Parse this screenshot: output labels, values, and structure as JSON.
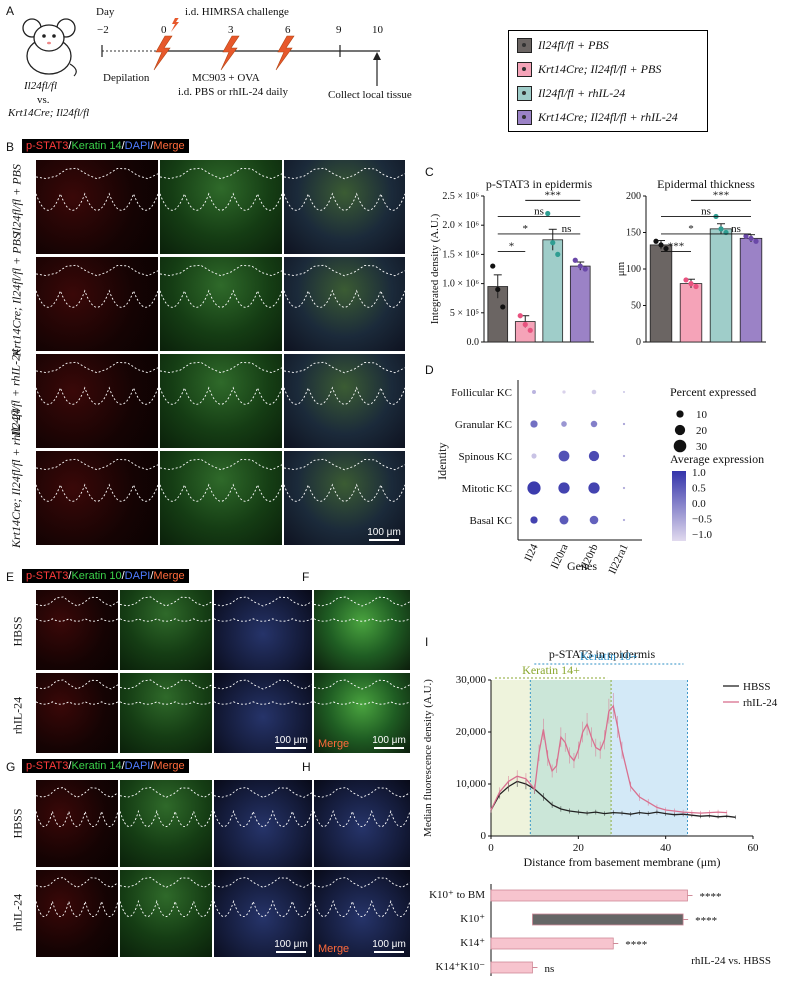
{
  "panel_labels": {
    "A": "A",
    "B": "B",
    "C": "C",
    "D": "D",
    "E": "E",
    "F": "F",
    "G": "G",
    "H": "H",
    "I": "I"
  },
  "timeline": {
    "day_label": "Day",
    "days": [
      "−2",
      "0",
      "3",
      "6",
      "9",
      "10"
    ],
    "challenge": "i.d. HIMRSA challenge",
    "depilation": "Depilation",
    "treatment_line1": "MC903 + OVA",
    "treatment_line2": "i.d. PBS or rhIL-24 daily",
    "collect": "Collect local tissue",
    "mouse_line1": "Il24fl/fl",
    "mouse_line2": "vs.",
    "mouse_line3": "Krt14Cre; Il24fl/fl"
  },
  "legend": {
    "items": [
      {
        "label": "Il24fl/fl + PBS",
        "color": "#6b6563"
      },
      {
        "label": "Krt14Cre; Il24fl/fl + PBS",
        "color": "#f5a3b8"
      },
      {
        "label": "Il24fl/fl + rhIL-24",
        "color": "#9fcdc9"
      },
      {
        "label": "Krt14Cre; Il24fl/fl + rhIL-24",
        "color": "#9b82c6"
      }
    ]
  },
  "stains": {
    "b": {
      "a": "p-STAT3",
      "s1": "/",
      "b": "Keratin 14",
      "s2": "/",
      "c": "DAPI",
      "s3": "/",
      "d": "Merge"
    },
    "e": {
      "a": "p-STAT3",
      "s1": "/",
      "b": "Keratin 10",
      "s2": "/",
      "c": "DAPI",
      "s3": "/",
      "d": "Merge"
    },
    "g": {
      "a": "p-STAT3",
      "s1": "/",
      "b": "Keratin 14",
      "s2": "/",
      "c": "DAPI",
      "s3": "/",
      "d": "Merge"
    }
  },
  "b_rows": [
    "Il24fl/fl + PBS",
    "Krt14Cre; Il24fl/fl + PBS",
    "Il24fl/fl + rhIL-24",
    "Krt14Cre; Il24fl/fl + rhIL-24"
  ],
  "e_rows": [
    "HBSS",
    "rhIL-24"
  ],
  "scalebar": "100 μm",
  "merge_label": "Merge",
  "chart_data": [
    {
      "type": "bar",
      "title": "p-STAT3 in epidermis",
      "ylabel": "Integrated density (A.U.)",
      "ylim": [
        0,
        2500000
      ],
      "yticks": [
        "0.0",
        "5 × 10⁵",
        "1.0 × 10⁶",
        "1.5 × 10⁶",
        "2.0 × 10⁶",
        "2.5 × 10⁶"
      ],
      "categories": [
        "Il24fl/fl + PBS",
        "Krt14Cre; Il24fl/fl + PBS",
        "Il24fl/fl + rhIL-24",
        "Krt14Cre; Il24fl/fl + rhIL-24"
      ],
      "values": [
        950000,
        350000,
        1750000,
        1300000
      ],
      "errors": [
        200000,
        100000,
        180000,
        70000
      ],
      "points": [
        [
          1300000,
          900000,
          600000
        ],
        [
          450000,
          300000,
          200000
        ],
        [
          2200000,
          1700000,
          1500000
        ],
        [
          1400000,
          1300000,
          1250000
        ]
      ],
      "significance": [
        {
          "from": 0,
          "to": 1,
          "label": "*"
        },
        {
          "from": 0,
          "to": 2,
          "label": "*"
        },
        {
          "from": 2,
          "to": 3,
          "label": "ns"
        },
        {
          "from": 0,
          "to": 3,
          "label": "ns"
        },
        {
          "from": 1,
          "to": 3,
          "label": "***"
        }
      ]
    },
    {
      "type": "bar",
      "title": "Epidermal thickness",
      "ylabel": "μm",
      "ylim": [
        0,
        200
      ],
      "yticks": [
        "0",
        "50",
        "100",
        "150",
        "200"
      ],
      "categories": [
        "Il24fl/fl + PBS",
        "Krt14Cre; Il24fl/fl + PBS",
        "Il24fl/fl + rhIL-24",
        "Krt14Cre; Il24fl/fl + rhIL-24"
      ],
      "values": [
        133,
        80,
        155,
        142
      ],
      "errors": [
        6,
        6,
        7,
        5
      ],
      "points": [
        [
          138,
          133,
          128
        ],
        [
          85,
          80,
          76
        ],
        [
          172,
          155,
          150
        ],
        [
          145,
          142,
          138
        ]
      ],
      "significance": [
        {
          "from": 0,
          "to": 1,
          "label": "***"
        },
        {
          "from": 0,
          "to": 2,
          "label": "*"
        },
        {
          "from": 2,
          "to": 3,
          "label": "ns"
        },
        {
          "from": 0,
          "to": 3,
          "label": "ns"
        },
        {
          "from": 1,
          "to": 3,
          "label": "***"
        }
      ]
    },
    {
      "type": "scatter",
      "title": "",
      "xlabel": "Genes",
      "ylabel": "Identity",
      "genes": [
        "Il24",
        "Il20ra",
        "Il20rb",
        "Il22ra1"
      ],
      "identities": [
        "Follicular KC",
        "Granular KC",
        "Spinous KC",
        "Mitotic KC",
        "Basal KC"
      ],
      "percent": [
        [
          3,
          2,
          4,
          0.5
        ],
        [
          10,
          6,
          8,
          1
        ],
        [
          5,
          22,
          20,
          1
        ],
        [
          33,
          24,
          24,
          1
        ],
        [
          10,
          15,
          14,
          1
        ]
      ],
      "avg_expr": [
        [
          -0.6,
          -1.0,
          -0.9,
          -0.5
        ],
        [
          0.3,
          -0.2,
          0.1,
          -0.4
        ],
        [
          -0.8,
          0.7,
          0.8,
          -0.5
        ],
        [
          1.0,
          0.9,
          0.9,
          -0.5
        ],
        [
          0.9,
          0.6,
          0.5,
          -0.5
        ]
      ],
      "size_legend_title": "Percent expressed",
      "size_legend": [
        "10",
        "20",
        "30"
      ],
      "color_legend_title": "Average expression",
      "color_legend": [
        "1.0",
        "0.5",
        "0.0",
        "−0.5",
        "−1.0"
      ]
    },
    {
      "type": "line",
      "title": "p-STAT3 in epidermis",
      "xlabel": "Distance from basement membrane (μm)",
      "ylabel": "Median fluorescence density (A.U.)",
      "xlim": [
        0,
        60
      ],
      "ylim": [
        0,
        30000
      ],
      "xticks": [
        "0",
        "20",
        "40",
        "60"
      ],
      "yticks": [
        "0",
        "10,000",
        "20,000",
        "30,000"
      ],
      "regions": [
        {
          "name": "Keratin 14+",
          "from": 0,
          "to": 27.5
        },
        {
          "name": "Keratin 10+",
          "from": 9,
          "to": 45
        }
      ],
      "series": [
        {
          "name": "HBSS",
          "color": "#222222",
          "x": [
            0,
            2,
            4,
            6,
            8,
            10,
            12,
            14,
            16,
            18,
            20,
            22,
            24,
            26,
            28,
            30,
            32,
            34,
            36,
            38,
            40,
            42,
            44,
            46,
            48,
            50,
            52,
            54,
            56
          ],
          "y": [
            5000,
            8000,
            9500,
            10500,
            10000,
            9000,
            7500,
            6000,
            5200,
            4800,
            4600,
            4400,
            4600,
            4300,
            4500,
            4400,
            4200,
            4500,
            4300,
            4600,
            4300,
            4100,
            4200,
            4000,
            3800,
            3900,
            3700,
            3800,
            3600
          ]
        },
        {
          "name": "rhIL-24",
          "color": "#d9708f",
          "x": [
            0,
            2,
            4,
            6,
            8,
            10,
            11,
            12,
            13,
            14,
            15,
            16,
            17,
            18,
            19,
            20,
            21,
            22,
            23,
            24,
            25,
            26,
            27,
            28,
            29,
            30,
            32,
            34,
            36,
            38,
            40,
            42,
            44,
            46,
            48,
            50,
            52,
            54
          ],
          "y": [
            5000,
            8500,
            10500,
            11500,
            11000,
            9000,
            16000,
            20500,
            15000,
            12500,
            13500,
            19000,
            18000,
            15500,
            14500,
            16500,
            20000,
            21500,
            19000,
            17000,
            16500,
            18500,
            24000,
            25000,
            21000,
            16500,
            9500,
            7500,
            6500,
            5500,
            5000,
            4800,
            4600,
            4500,
            4400,
            4500,
            4600,
            4500
          ]
        }
      ]
    },
    {
      "type": "bar",
      "title": "",
      "xlabel": "",
      "annotation": "rhIL-24 vs. HBSS",
      "categories": [
        "K10⁺ to BM",
        "K10⁺",
        "K14⁺",
        "K14⁺K10⁻"
      ],
      "starts": [
        0,
        9.5,
        0,
        0
      ],
      "values": [
        45,
        44,
        28,
        9.5
      ],
      "colors": [
        "#f7c4ce",
        "#666666",
        "#f7c4ce",
        "#f7c4ce"
      ],
      "significance": [
        "****",
        "****",
        "****",
        "ns"
      ]
    }
  ]
}
